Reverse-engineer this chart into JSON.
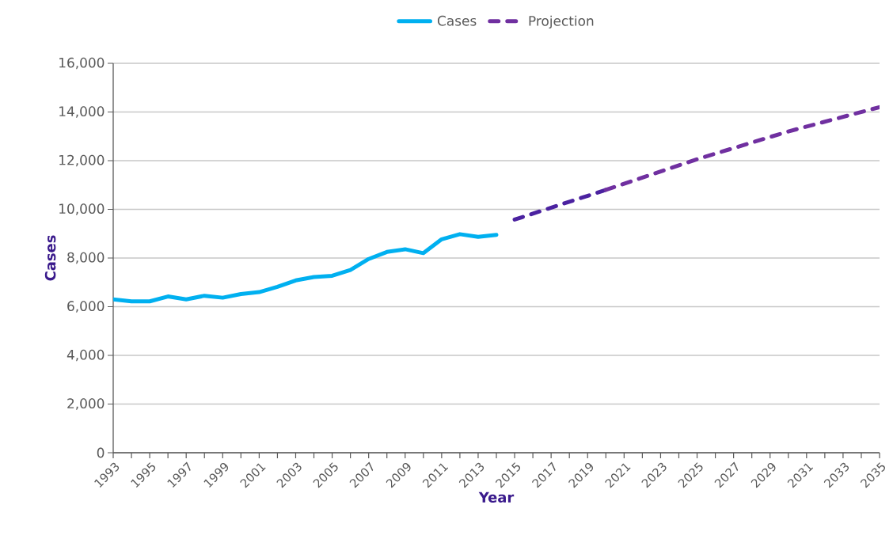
{
  "chart_data": {
    "type": "line",
    "xlabel": "Year",
    "ylabel": "Cases",
    "series": [
      {
        "name": "Cases",
        "color": "#00b0f0",
        "line_style": "solid",
        "x": [
          1993,
          1994,
          1995,
          1996,
          1997,
          1998,
          1999,
          2000,
          2001,
          2002,
          2003,
          2004,
          2005,
          2006,
          2007,
          2008,
          2009,
          2010,
          2011,
          2012,
          2013,
          2014
        ],
        "values": [
          6300,
          6220,
          6220,
          6420,
          6300,
          6450,
          6370,
          6520,
          6600,
          6820,
          7080,
          7220,
          7270,
          7510,
          7960,
          8250,
          8360,
          8200,
          8770,
          8980,
          8870,
          8950
        ]
      },
      {
        "color": "#4b22a0",
        "line_style": "dashed",
        "x": [
          2015,
          2020
        ],
        "values": [
          9580,
          10800
        ]
      },
      {
        "name": "Projection",
        "color": "#7030a0",
        "line_style": "dashed",
        "x": [
          2020,
          2025,
          2030,
          2035
        ],
        "values": [
          10800,
          12060,
          13200,
          14200
        ]
      }
    ],
    "xlim": [
      1993,
      2035
    ],
    "xticks": [
      1993,
      {
        "value": 1994,
        "label": null
      },
      1995,
      {
        "value": 1996,
        "label": null
      },
      1997,
      {
        "value": 1998,
        "label": null
      },
      1999,
      {
        "value": 2000,
        "label": null
      },
      2001,
      {
        "value": 2002,
        "label": null
      },
      2003,
      {
        "value": 2004,
        "label": null
      },
      2005,
      {
        "value": 2006,
        "label": null
      },
      2007,
      {
        "value": 2008,
        "label": null
      },
      2009,
      {
        "value": 2010,
        "label": null
      },
      2011,
      {
        "value": 2012,
        "label": null
      },
      2013,
      {
        "value": 2014,
        "label": null
      },
      2015,
      {
        "value": 2016,
        "label": null
      },
      2017,
      {
        "value": 2018,
        "label": null
      },
      2019,
      {
        "value": 2020,
        "label": null
      },
      2021,
      {
        "value": 2022,
        "label": null
      },
      2023,
      {
        "value": 2024,
        "label": null
      },
      2025,
      {
        "value": 2026,
        "label": null
      },
      2027,
      {
        "value": 2028,
        "label": null
      },
      2029,
      {
        "value": 2030,
        "label": null
      },
      2031,
      {
        "value": 2032,
        "label": null
      },
      2033,
      {
        "value": 2034,
        "label": null
      },
      2035
    ],
    "ylim": [
      0,
      16000
    ],
    "yticks": [
      {
        "value": 0,
        "label": "0"
      },
      {
        "value": 2000,
        "label": "2,000"
      },
      {
        "value": 4000,
        "label": "4,000"
      },
      {
        "value": 6000,
        "label": "6,000"
      },
      {
        "value": 8000,
        "label": "8,000"
      },
      {
        "value": 10000,
        "label": "10,000"
      },
      {
        "value": 12000,
        "label": "12,000"
      },
      {
        "value": 14000,
        "label": "14,000"
      },
      {
        "value": 16000,
        "label": "16,000"
      }
    ],
    "grid": "y",
    "legend": "top"
  }
}
